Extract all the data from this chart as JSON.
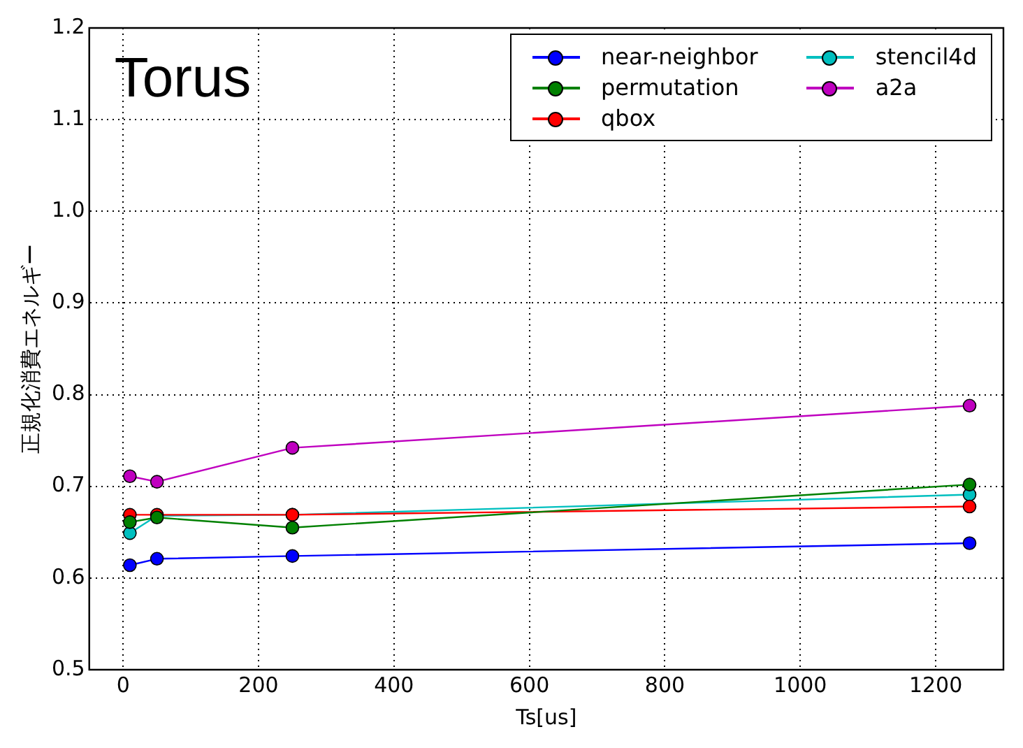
{
  "chart_data": {
    "type": "line",
    "title": "Torus",
    "xlabel": "Ts[us]",
    "ylabel": "正規化消費エネルギー",
    "x": [
      10,
      50,
      250,
      1250
    ],
    "series": [
      {
        "name": "near-neighbor",
        "color": "#0000ff",
        "values": [
          0.614,
          0.621,
          0.624,
          0.638
        ]
      },
      {
        "name": "permutation",
        "color": "#008000",
        "values": [
          0.661,
          0.666,
          0.655,
          0.702
        ]
      },
      {
        "name": "qbox",
        "color": "#ff0000",
        "values": [
          0.669,
          0.669,
          0.669,
          0.678
        ]
      },
      {
        "name": "stencil4d",
        "color": "#00bfbf",
        "values": [
          0.649,
          0.668,
          0.669,
          0.691
        ]
      },
      {
        "name": "a2a",
        "color": "#bf00bf",
        "values": [
          0.711,
          0.705,
          0.742,
          0.788
        ]
      }
    ],
    "xlim": [
      -50,
      1300
    ],
    "xticks": [
      0,
      200,
      400,
      600,
      800,
      1000,
      1200
    ],
    "ylim": [
      0.5,
      1.2
    ],
    "yticks": [
      0.5,
      0.6,
      0.7,
      0.8,
      0.9,
      {
        "value": 1,
        "label": "1.0"
      },
      1.1,
      1.2
    ],
    "grid": true,
    "legend": "top right",
    "marker": "circle",
    "line_style": "solid"
  }
}
